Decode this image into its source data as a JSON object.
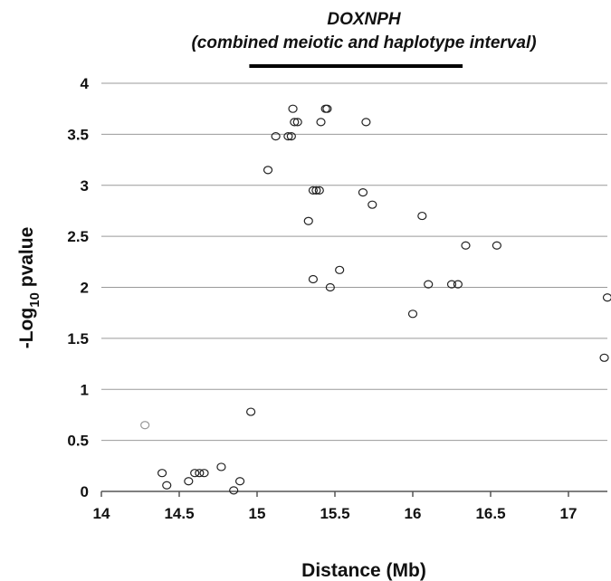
{
  "chart_data": {
    "type": "scatter",
    "title": "DOXNPH",
    "subtitle": "(combined meiotic and haplotype interval)",
    "xlabel": "Distance (Mb)",
    "ylabel_prefix": "-Log",
    "ylabel_subscript": "10",
    "ylabel_suffix": " pvalue",
    "xlim": [
      14,
      17.25
    ],
    "ylim": [
      0,
      4
    ],
    "x_ticks": [
      "14",
      "14.5",
      "15",
      "15.5",
      "16",
      "16.5",
      "17"
    ],
    "y_ticks": [
      "0",
      "0.5",
      "1",
      "1.5",
      "2",
      "2.5",
      "3",
      "3.5",
      "4"
    ],
    "grid": "horizontal",
    "interval": {
      "x_start": 14.95,
      "x_end": 16.32
    },
    "marker_color": "#222222",
    "highlight_marker_color": "#999999",
    "points": [
      {
        "x": 14.28,
        "y": 0.65,
        "highlight": true
      },
      {
        "x": 14.39,
        "y": 0.18
      },
      {
        "x": 14.42,
        "y": 0.06
      },
      {
        "x": 14.56,
        "y": 0.1
      },
      {
        "x": 14.6,
        "y": 0.18
      },
      {
        "x": 14.63,
        "y": 0.18
      },
      {
        "x": 14.66,
        "y": 0.18
      },
      {
        "x": 14.77,
        "y": 0.24
      },
      {
        "x": 14.85,
        "y": 0.01
      },
      {
        "x": 14.89,
        "y": 0.1
      },
      {
        "x": 14.96,
        "y": 0.78
      },
      {
        "x": 15.07,
        "y": 3.15
      },
      {
        "x": 15.12,
        "y": 3.48
      },
      {
        "x": 15.2,
        "y": 3.48
      },
      {
        "x": 15.22,
        "y": 3.48
      },
      {
        "x": 15.23,
        "y": 3.75
      },
      {
        "x": 15.24,
        "y": 3.62
      },
      {
        "x": 15.26,
        "y": 3.62
      },
      {
        "x": 15.33,
        "y": 2.65
      },
      {
        "x": 15.36,
        "y": 2.08
      },
      {
        "x": 15.36,
        "y": 2.95
      },
      {
        "x": 15.38,
        "y": 2.95
      },
      {
        "x": 15.4,
        "y": 2.95
      },
      {
        "x": 15.41,
        "y": 3.62
      },
      {
        "x": 15.44,
        "y": 3.75
      },
      {
        "x": 15.45,
        "y": 3.75
      },
      {
        "x": 15.47,
        "y": 2.0
      },
      {
        "x": 15.53,
        "y": 2.17
      },
      {
        "x": 15.68,
        "y": 2.93
      },
      {
        "x": 15.7,
        "y": 3.62
      },
      {
        "x": 15.74,
        "y": 2.81
      },
      {
        "x": 16.0,
        "y": 1.74
      },
      {
        "x": 16.06,
        "y": 2.7
      },
      {
        "x": 16.1,
        "y": 2.03
      },
      {
        "x": 16.25,
        "y": 2.03
      },
      {
        "x": 16.29,
        "y": 2.03
      },
      {
        "x": 16.34,
        "y": 2.41
      },
      {
        "x": 16.54,
        "y": 2.41
      },
      {
        "x": 17.23,
        "y": 1.31
      },
      {
        "x": 17.25,
        "y": 1.9
      }
    ]
  }
}
